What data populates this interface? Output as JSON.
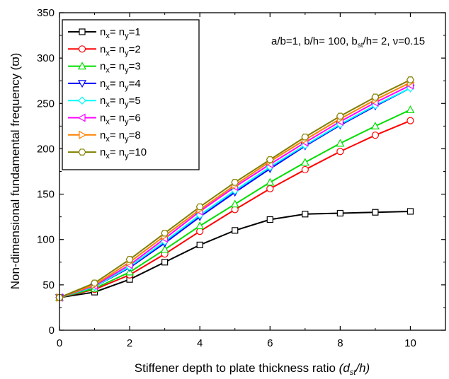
{
  "chart_data": {
    "type": "line",
    "xlabel": "Stiffener depth to plate thickness ratio (d_st/h)",
    "xlabel_main": "Stiffener depth to plate thickness ratio ",
    "xlabel_var_open": "(d",
    "xlabel_var_sub": "st",
    "xlabel_var_close": "/h)",
    "ylabel": "Non-dimensional fundamental frequency (ϖ)",
    "annotation_parts": {
      "a": "a/b=1, b/h= 100, b",
      "sub": "st",
      "b": "/h= 2, ν=0.15"
    },
    "xlim": [
      0,
      11
    ],
    "ylim": [
      0,
      350
    ],
    "x_ticks": [
      "0",
      "2",
      "4",
      "6",
      "8",
      "10"
    ],
    "y_ticks": [
      "0",
      "50",
      "100",
      "150",
      "200",
      "250",
      "300",
      "350"
    ],
    "legend_position": "top-left",
    "x": [
      0,
      1,
      2,
      3,
      4,
      5,
      6,
      7,
      8,
      9,
      10
    ],
    "series": [
      {
        "name": "nx= ny=1",
        "lx": "x",
        "ly": "y",
        "val": "=1",
        "color": "#000000",
        "marker": "square",
        "values": [
          36,
          42,
          56,
          75,
          94,
          110,
          122,
          128,
          129,
          130,
          131
        ]
      },
      {
        "name": "nx= ny=2",
        "lx": "x",
        "ly": "y",
        "val": "=2",
        "color": "#ff0000",
        "marker": "circle",
        "values": [
          36,
          45,
          61,
          84,
          109,
          133,
          156,
          177,
          197,
          215,
          231
        ]
      },
      {
        "name": "nx= ny=3",
        "lx": "x",
        "ly": "y",
        "val": "=3",
        "color": "#00dd00",
        "marker": "triangle-up",
        "values": [
          36,
          46,
          64,
          89,
          115,
          139,
          163,
          185,
          206,
          225,
          243
        ]
      },
      {
        "name": "nx= ny=4",
        "lx": "x",
        "ly": "y",
        "val": "=4",
        "color": "#0000ff",
        "marker": "triangle-down",
        "values": [
          36,
          48,
          69,
          96,
          125,
          152,
          178,
          203,
          226,
          247,
          267
        ]
      },
      {
        "name": "nx= ny=5",
        "lx": "x",
        "ly": "y",
        "val": "=5",
        "color": "#00ffff",
        "marker": "diamond",
        "values": [
          36,
          48,
          70,
          98,
          127,
          154,
          180,
          204,
          227,
          248,
          267
        ]
      },
      {
        "name": "nx= ny=6",
        "lx": "x",
        "ly": "y",
        "val": "=6",
        "color": "#ff00ff",
        "marker": "triangle-left",
        "values": [
          36,
          49,
          72,
          101,
          131,
          158,
          183,
          207,
          230,
          251,
          270
        ]
      },
      {
        "name": "nx= ny=8",
        "lx": "x",
        "ly": "y",
        "val": "=8",
        "color": "#ff8000",
        "marker": "triangle-right",
        "values": [
          36,
          50,
          75,
          104,
          133,
          160,
          186,
          210,
          233,
          254,
          273
        ]
      },
      {
        "name": "nx= ny=10",
        "lx": "x",
        "ly": "y",
        "val": "=10",
        "color": "#808000",
        "marker": "hexagon",
        "values": [
          36,
          52,
          78,
          107,
          136,
          163,
          188,
          213,
          236,
          257,
          276
        ]
      }
    ]
  }
}
